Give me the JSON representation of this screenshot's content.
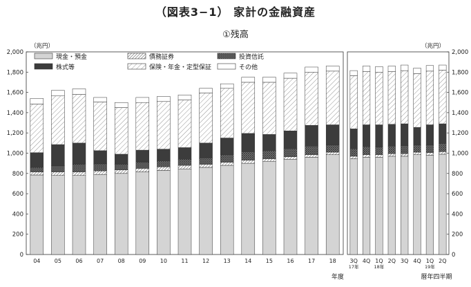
{
  "title": "（図表3−1） 家計の金融資産",
  "subtitle": "①残高",
  "chart_data": {
    "type": "bar",
    "stacked": true,
    "unit": "（兆円）",
    "ylim": [
      0,
      2000
    ],
    "yticks": [
      "0",
      "200",
      "400",
      "600",
      "800",
      "1,000",
      "1,200",
      "1,400",
      "1,600",
      "1,800",
      "2,000"
    ],
    "legend": "top-left",
    "panels": [
      {
        "xlabel": "年度",
        "categories": [
          "04",
          "05",
          "06",
          "07",
          "08",
          "09",
          "10",
          "11",
          "12",
          "13",
          "14",
          "15",
          "16",
          "17",
          "18"
        ]
      },
      {
        "xlabel": "暦年四半期",
        "categories": [
          "3Q",
          "4Q",
          "1Q",
          "2Q",
          "3Q",
          "4Q",
          "1Q",
          "2Q"
        ],
        "year_labels": [
          {
            "text": "17年",
            "under_index": 0
          },
          {
            "text": "18年",
            "under_index": 2
          },
          {
            "text": "19年",
            "under_index": 6
          }
        ]
      }
    ],
    "series": [
      {
        "name": "現金・預金",
        "pattern": "solid-light",
        "values": [
          785,
          780,
          780,
          790,
          800,
          815,
          830,
          845,
          860,
          880,
          900,
          920,
          940,
          960,
          985,
          945,
          960,
          960,
          970,
          970,
          985,
          980,
          990
        ]
      },
      {
        "name": "債務証券",
        "pattern": "hatch-dense",
        "values": [
          30,
          35,
          35,
          35,
          35,
          35,
          35,
          35,
          30,
          30,
          30,
          25,
          25,
          25,
          25,
          25,
          25,
          25,
          25,
          25,
          25,
          25,
          25
        ]
      },
      {
        "name": "投資信託",
        "pattern": "crosshatch",
        "values": [
          45,
          60,
          75,
          70,
          55,
          60,
          60,
          60,
          65,
          75,
          85,
          80,
          80,
          85,
          70,
          75,
          80,
          75,
          75,
          80,
          70,
          75,
          80
        ]
      },
      {
        "name": "株式等",
        "pattern": "solid-dark",
        "values": [
          145,
          210,
          210,
          130,
          100,
          120,
          115,
          115,
          145,
          165,
          180,
          160,
          175,
          205,
          200,
          195,
          215,
          220,
          215,
          215,
          175,
          200,
          195
        ]
      },
      {
        "name": "保険・年金・定型保証",
        "pattern": "hatch-sparse",
        "values": [
          480,
          480,
          480,
          480,
          460,
          470,
          470,
          470,
          495,
          490,
          505,
          515,
          520,
          525,
          530,
          525,
          525,
          520,
          520,
          525,
          530,
          530,
          530
        ]
      },
      {
        "name": "その他",
        "pattern": "empty",
        "values": [
          55,
          55,
          55,
          45,
          50,
          50,
          50,
          50,
          45,
          45,
          50,
          50,
          50,
          50,
          50,
          50,
          55,
          55,
          55,
          55,
          55,
          55,
          50
        ]
      }
    ]
  }
}
